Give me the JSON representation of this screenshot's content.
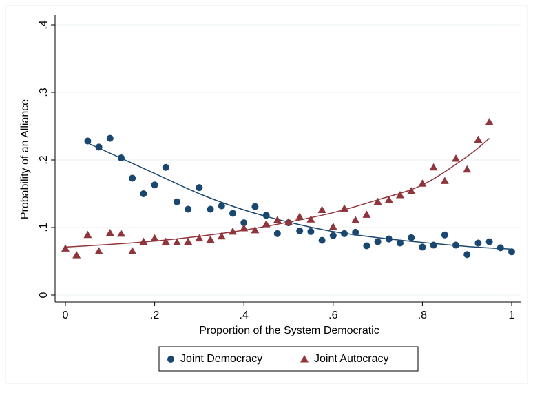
{
  "chart_data": {
    "type": "scatter",
    "x_label": "Proportion of the System Democratic",
    "y_label": "Probability of an Alliance",
    "xlim": [
      0,
      1
    ],
    "ylim": [
      0,
      0.4
    ],
    "xticks": [
      0,
      {
        "value": 0.2,
        "label": ".2"
      },
      {
        "value": 0.4,
        "label": ".4"
      },
      {
        "value": 0.6,
        "label": ".6"
      },
      {
        "value": 0.8,
        "label": ".8"
      },
      1
    ],
    "yticks": [
      0,
      {
        "value": 0.1,
        "label": ".1"
      },
      {
        "value": 0.2,
        "label": ".2"
      },
      {
        "value": 0.3,
        "label": ".3"
      },
      {
        "value": 0.4,
        "label": ".4"
      }
    ],
    "grid": true,
    "legend": "bottom",
    "series": [
      {
        "name": "Joint Democracy",
        "color": "#1a476f",
        "marker": "circle",
        "x": [
          0.05,
          0.075,
          0.1,
          0.125,
          0.15,
          0.175,
          0.2,
          0.225,
          0.25,
          0.275,
          0.3,
          0.325,
          0.35,
          0.375,
          0.4,
          0.425,
          0.45,
          0.475,
          0.5,
          0.525,
          0.55,
          0.575,
          0.6,
          0.625,
          0.65,
          0.675,
          0.7,
          0.725,
          0.75,
          0.775,
          0.8,
          0.825,
          0.85,
          0.875,
          0.9,
          0.925,
          0.95,
          0.975,
          1.0
        ],
        "values": [
          0.228,
          0.219,
          0.232,
          0.203,
          0.173,
          0.15,
          0.163,
          0.189,
          0.138,
          0.127,
          0.159,
          0.127,
          0.132,
          0.121,
          0.107,
          0.131,
          0.118,
          0.091,
          0.107,
          0.095,
          0.094,
          0.081,
          0.088,
          0.091,
          0.093,
          0.073,
          0.079,
          0.083,
          0.077,
          0.085,
          0.071,
          0.074,
          0.089,
          0.074,
          0.06,
          0.077,
          0.079,
          0.07,
          0.064
        ],
        "fit_x": [
          0.05,
          0.2,
          0.3,
          0.4,
          0.5,
          0.6,
          0.7,
          0.8,
          0.9,
          1.0
        ],
        "fit_values": [
          0.225,
          0.18,
          0.15,
          0.126,
          0.108,
          0.094,
          0.085,
          0.078,
          0.072,
          0.068
        ]
      },
      {
        "name": "Joint Autocracy",
        "color": "#90353b",
        "marker": "triangle",
        "x": [
          0,
          0.025,
          0.05,
          0.075,
          0.1,
          0.125,
          0.15,
          0.175,
          0.2,
          0.225,
          0.25,
          0.275,
          0.3,
          0.325,
          0.35,
          0.375,
          0.4,
          0.425,
          0.45,
          0.475,
          0.5,
          0.525,
          0.55,
          0.575,
          0.6,
          0.625,
          0.65,
          0.675,
          0.7,
          0.725,
          0.75,
          0.775,
          0.8,
          0.825,
          0.85,
          0.875,
          0.9,
          0.925,
          0.95
        ],
        "values": [
          0.069,
          0.059,
          0.089,
          0.065,
          0.092,
          0.091,
          0.065,
          0.079,
          0.084,
          0.079,
          0.078,
          0.079,
          0.084,
          0.082,
          0.087,
          0.094,
          0.099,
          0.096,
          0.105,
          0.111,
          0.108,
          0.116,
          0.112,
          0.126,
          0.101,
          0.128,
          0.111,
          0.119,
          0.138,
          0.141,
          0.148,
          0.154,
          0.165,
          0.189,
          0.169,
          0.202,
          0.186,
          0.23,
          0.256
        ],
        "fit_x": [
          0,
          0.1,
          0.2,
          0.3,
          0.4,
          0.5,
          0.6,
          0.7,
          0.8,
          0.9,
          0.95
        ],
        "fit_values": [
          0.071,
          0.075,
          0.08,
          0.087,
          0.096,
          0.108,
          0.122,
          0.141,
          0.163,
          0.205,
          0.232
        ]
      }
    ]
  }
}
